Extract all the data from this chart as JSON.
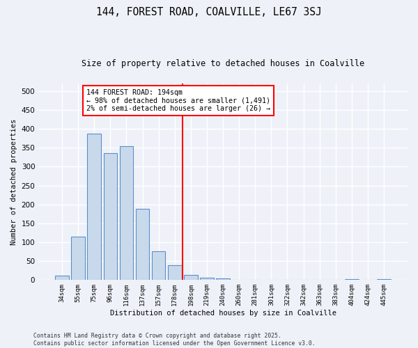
{
  "title1": "144, FOREST ROAD, COALVILLE, LE67 3SJ",
  "title2": "Size of property relative to detached houses in Coalville",
  "xlabel": "Distribution of detached houses by size in Coalville",
  "ylabel": "Number of detached properties",
  "categories": [
    "34sqm",
    "55sqm",
    "75sqm",
    "96sqm",
    "116sqm",
    "137sqm",
    "157sqm",
    "178sqm",
    "198sqm",
    "219sqm",
    "240sqm",
    "260sqm",
    "281sqm",
    "301sqm",
    "322sqm",
    "342sqm",
    "363sqm",
    "383sqm",
    "404sqm",
    "424sqm",
    "445sqm"
  ],
  "values": [
    12,
    115,
    388,
    336,
    354,
    188,
    77,
    39,
    13,
    7,
    5,
    0,
    0,
    0,
    0,
    0,
    0,
    0,
    2,
    0,
    3
  ],
  "bar_color": "#c9d9ec",
  "bar_edge_color": "#5b8fc9",
  "vline_x_index": 8,
  "vline_color": "red",
  "annotation_text": "144 FOREST ROAD: 194sqm\n← 98% of detached houses are smaller (1,491)\n2% of semi-detached houses are larger (26) →",
  "annotation_box_color": "white",
  "annotation_box_edge_color": "red",
  "footer1": "Contains HM Land Registry data © Crown copyright and database right 2025.",
  "footer2": "Contains public sector information licensed under the Open Government Licence v3.0.",
  "ylim": [
    0,
    520
  ],
  "yticks": [
    0,
    50,
    100,
    150,
    200,
    250,
    300,
    350,
    400,
    450,
    500
  ],
  "background_color": "#eef2f8",
  "grid_color": "#ffffff"
}
